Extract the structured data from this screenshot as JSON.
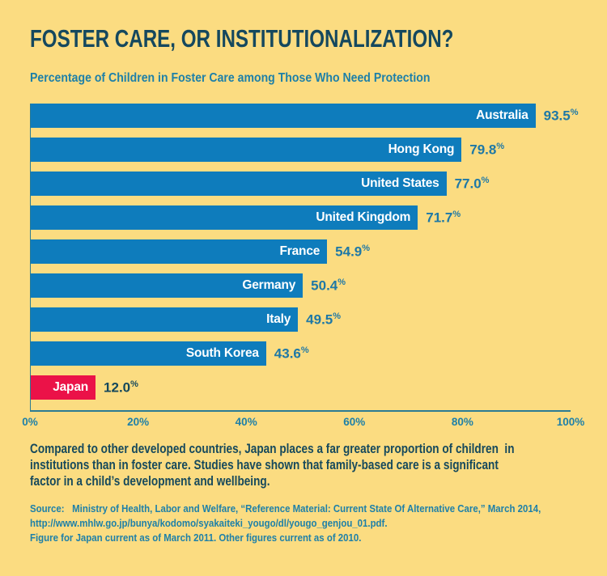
{
  "poster": {
    "title": "FOSTER CARE, OR INSTITUTIONALIZATION?",
    "subtitle": "Percentage of Children in Foster Care among Those Who Need Protection",
    "body_lines": [
      "Compared to other developed countries, Japan places a far greater proportion of children  in",
      "institutions than in foster care. Studies have shown that family-based care is a significant",
      "factor in a child’s development and wellbeing."
    ],
    "source_lines": [
      "Source:   Ministry of Health, Labor and Welfare, “Reference Material: Current State Of Alternative Care,” March 2014,",
      "http://www.mhlw.go.jp/bunya/kodomo/syakaiteki_yougo/dl/yougo_genjou_01.pdf.",
      "Figure for Japan current as of March 2011. Other figures current as of 2010."
    ]
  },
  "chart_data": {
    "type": "bar",
    "orientation": "horizontal",
    "title": "Percentage of Children in Foster Care among Those Who Need Protection",
    "categories": [
      "Australia",
      "Hong Kong",
      "United States",
      "United Kingdom",
      "France",
      "Germany",
      "Italy",
      "South Korea",
      "Japan"
    ],
    "values": [
      93.5,
      79.8,
      77.0,
      71.7,
      54.9,
      50.4,
      49.5,
      43.6,
      12.0
    ],
    "value_labels": [
      "93.5%",
      "79.8%",
      "77.0%",
      "71.7%",
      "54.9%",
      "50.4%",
      "49.5%",
      "43.6%",
      "12.0%"
    ],
    "percent_sign": "%",
    "highlight_category": "Japan",
    "x_ticks": [
      "0%",
      "20%",
      "40%",
      "60%",
      "80%",
      "100%"
    ],
    "xlim": [
      0,
      100
    ],
    "grid": false,
    "legend": "none",
    "colors": {
      "background": "#FBDC81",
      "bar": "#0E7CBC",
      "highlight_bar": "#EB1248",
      "bar_label_text": "#FFFFFF",
      "value_text": "#1E78A6",
      "highlight_value_text": "#15485C",
      "title_text": "#15485E",
      "subtitle_text": "#1E80A8",
      "axis_line": "#2B7B93"
    }
  }
}
